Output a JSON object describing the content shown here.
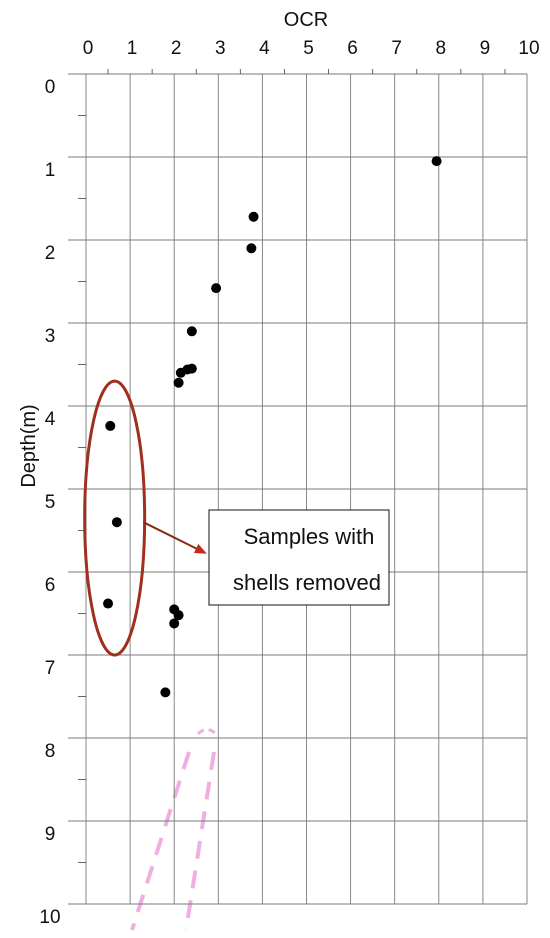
{
  "chart_data": {
    "type": "scatter",
    "title": "",
    "xlabel": "OCR",
    "ylabel": "Depth(m)",
    "xlim": [
      0,
      10
    ],
    "ylim": [
      0,
      10
    ],
    "y_inverted": true,
    "x_axis_position": "top",
    "grid": true,
    "x_ticks": [
      "0",
      "1",
      "2",
      "3",
      "4",
      "5",
      "6",
      "7",
      "8",
      "9",
      "10"
    ],
    "y_ticks": [
      "0",
      "1",
      "2",
      "3",
      "4",
      "5",
      "6",
      "7",
      "8",
      "9",
      "10"
    ],
    "series": [
      {
        "marker": "filled-circle",
        "color": "#000000",
        "points": [
          {
            "x": 7.95,
            "y": 1.05
          },
          {
            "x": 3.8,
            "y": 1.72
          },
          {
            "x": 3.75,
            "y": 2.1
          },
          {
            "x": 2.95,
            "y": 2.58
          },
          {
            "x": 2.4,
            "y": 3.1
          },
          {
            "x": 2.4,
            "y": 3.55
          },
          {
            "x": 2.3,
            "y": 3.56
          },
          {
            "x": 2.15,
            "y": 3.6
          },
          {
            "x": 2.1,
            "y": 3.72
          },
          {
            "x": 0.55,
            "y": 4.24
          },
          {
            "x": 0.7,
            "y": 5.4
          },
          {
            "x": 0.5,
            "y": 6.38
          },
          {
            "x": 2.0,
            "y": 6.45
          },
          {
            "x": 2.1,
            "y": 6.52
          },
          {
            "x": 2.0,
            "y": 6.62
          },
          {
            "x": 1.8,
            "y": 7.45
          }
        ]
      }
    ],
    "annotations": [
      {
        "type": "ellipse",
        "color": "#a0301e",
        "cx": 0.65,
        "cy": 5.35,
        "rx": 0.68,
        "ry": 1.65
      },
      {
        "type": "callout",
        "lines": [
          "Samples with",
          "shells removed"
        ],
        "arrow_color": "#8b2a14",
        "arrowhead_color": "#c8281e",
        "from": [
          1.3,
          5.4
        ],
        "to": [
          2.7,
          5.77
        ]
      }
    ]
  }
}
